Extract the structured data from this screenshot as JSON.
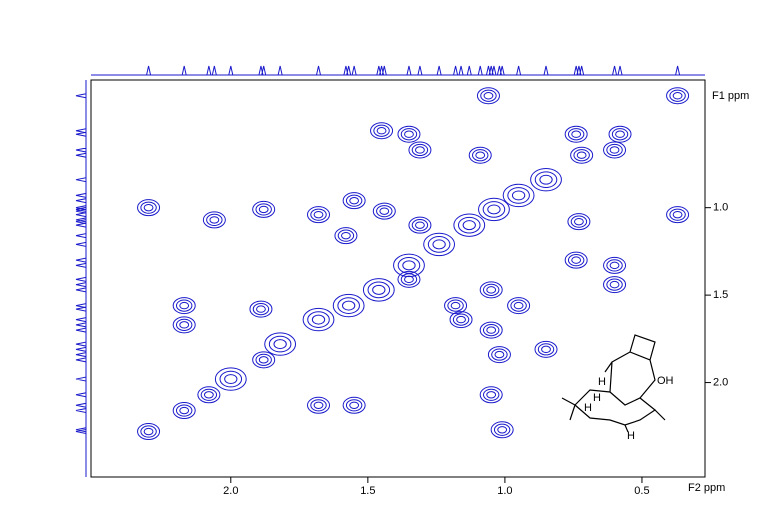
{
  "chart_data": {
    "type": "contour",
    "x_label": "F2 ppm",
    "y_label": "F1 ppm",
    "xlim": [
      2.51,
      0.27
    ],
    "ylim": [
      2.54,
      0.27
    ],
    "color": "#1a1acc",
    "xticks": [
      {
        "value": 2.0,
        "label": "2.0"
      },
      {
        "value": 1.5,
        "label": "1.5"
      },
      {
        "value": 1.0,
        "label": "1.0"
      },
      {
        "value": 0.5,
        "label": "0.5"
      }
    ],
    "yticks": [
      {
        "value": 1.0,
        "label": "1.0"
      },
      {
        "value": 1.5,
        "label": "1.5"
      },
      {
        "value": 2.0,
        "label": "2.0"
      }
    ],
    "series": [
      {
        "name": "cross peaks",
        "x": [
          1.06,
          0.37,
          1.45,
          1.35,
          1.31,
          1.09,
          0.74,
          0.58,
          0.72,
          0.6,
          2.3,
          2.06,
          1.88,
          1.68,
          1.55,
          1.44,
          1.58,
          1.31,
          0.73,
          0.37,
          0.74,
          0.6,
          0.6,
          2.17,
          2.17,
          1.89,
          1.35,
          1.18,
          1.16,
          1.05,
          0.95,
          1.05,
          1.02,
          1.05,
          0.85,
          1.88,
          1.68,
          1.55,
          2.17,
          2.08,
          2.3,
          1.01
        ],
        "y": [
          0.36,
          0.36,
          0.56,
          0.58,
          0.67,
          0.7,
          0.58,
          0.58,
          0.7,
          0.67,
          1.0,
          1.07,
          1.01,
          1.04,
          0.96,
          1.02,
          1.16,
          1.1,
          1.08,
          1.04,
          1.3,
          1.33,
          1.44,
          1.56,
          1.67,
          1.58,
          1.41,
          1.56,
          1.64,
          1.47,
          1.56,
          1.7,
          1.84,
          2.07,
          1.81,
          1.87,
          2.13,
          2.13,
          2.16,
          2.07,
          2.28,
          2.27
        ]
      },
      {
        "name": "diagonal",
        "x": [
          2.0,
          1.82,
          1.68,
          1.57,
          1.46,
          1.35,
          1.24,
          1.13,
          1.04,
          0.95,
          0.85
        ],
        "y": [
          1.98,
          1.78,
          1.64,
          1.56,
          1.47,
          1.33,
          1.21,
          1.1,
          1.01,
          0.93,
          0.84
        ]
      }
    ],
    "structure_labels": [
      "H",
      "H",
      "H",
      "H",
      "OH"
    ]
  }
}
